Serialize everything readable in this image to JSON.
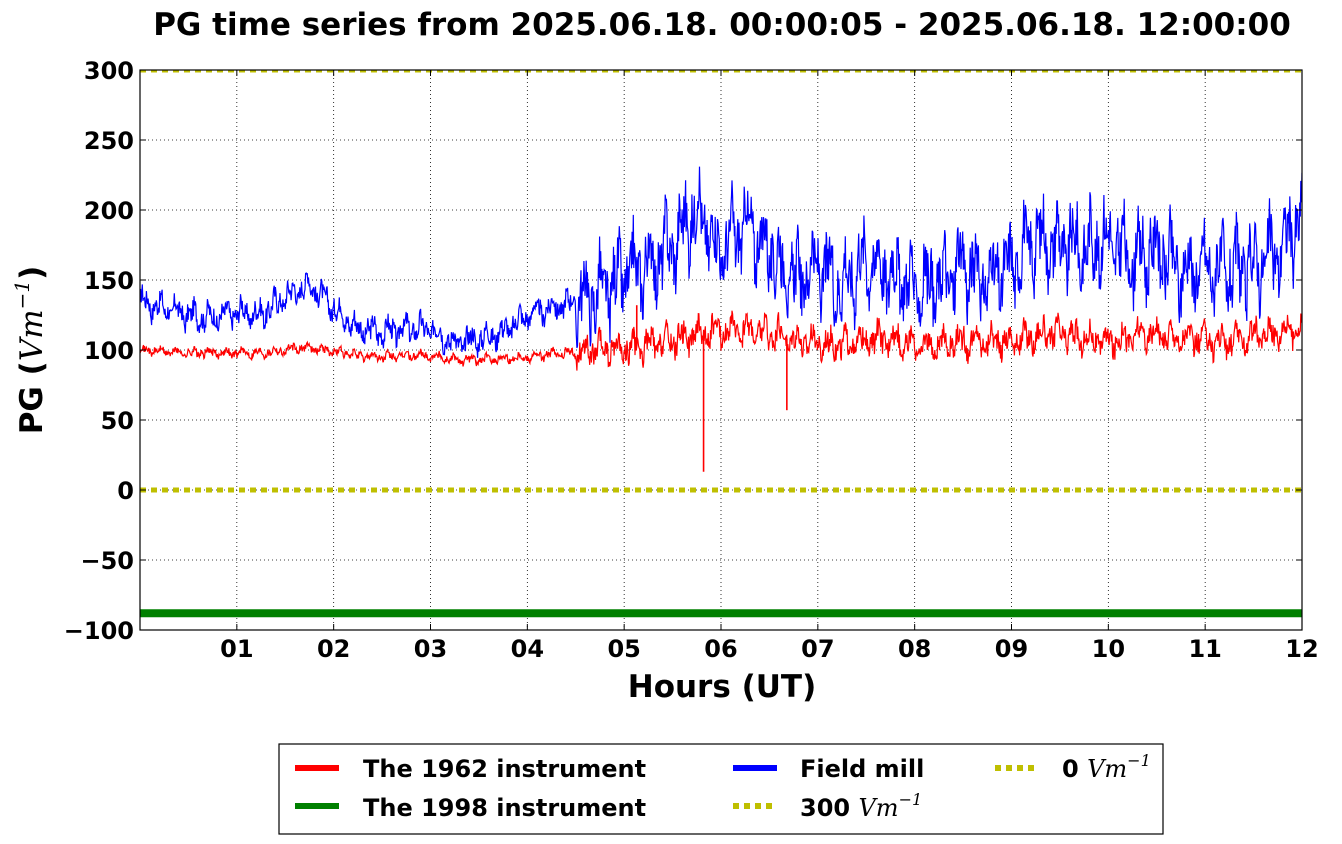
{
  "chart_data": {
    "type": "line",
    "title": "PG time series from 2025.06.18. 00:00:05 - 2025.06.18. 12:00:00",
    "xlabel": "Hours (UT)",
    "ylabel_main": "PG (",
    "ylabel_unit": "Vm",
    "ylabel_exp": "−1",
    "ylabel_close": ")",
    "xlim": [
      0,
      12
    ],
    "ylim": [
      -100,
      300
    ],
    "x_ticks": [
      1,
      2,
      3,
      4,
      5,
      6,
      7,
      8,
      9,
      10,
      11,
      12
    ],
    "x_tick_labels": [
      "01",
      "02",
      "03",
      "04",
      "05",
      "06",
      "07",
      "08",
      "09",
      "10",
      "11",
      "12"
    ],
    "y_ticks": [
      -100,
      -50,
      0,
      50,
      100,
      150,
      200,
      250,
      300
    ],
    "y_tick_labels": [
      "−100",
      "−50",
      "0",
      "50",
      "100",
      "150",
      "200",
      "250",
      "300"
    ],
    "grid": true,
    "legend_placement": "bottom-center",
    "series": [
      {
        "name": "The 1962 instrument",
        "color": "#ff0000",
        "style": "solid",
        "x": [
          0,
          0.25,
          0.5,
          0.75,
          1,
          1.25,
          1.5,
          1.75,
          2,
          2.25,
          2.5,
          2.75,
          3,
          3.25,
          3.5,
          3.75,
          4,
          4.25,
          4.5,
          4.75,
          5,
          5.25,
          5.5,
          5.75,
          6,
          6.25,
          6.5,
          6.75,
          7,
          7.25,
          7.5,
          7.75,
          8,
          8.25,
          8.5,
          8.75,
          9,
          9.25,
          9.5,
          9.75,
          10,
          10.25,
          10.5,
          10.75,
          11,
          11.25,
          11.5,
          11.75,
          12
        ],
        "y": [
          100,
          99,
          98,
          98,
          98,
          98,
          100,
          102,
          99,
          96,
          95,
          96,
          96,
          93,
          93,
          94,
          95,
          97,
          98,
          100,
          101,
          103,
          107,
          112,
          113,
          115,
          112,
          108,
          105,
          104,
          106,
          109,
          103,
          103,
          106,
          107,
          106,
          110,
          112,
          108,
          106,
          110,
          112,
          108,
          108,
          106,
          110,
          113,
          117
        ],
        "spikes": [
          {
            "x": 5.13,
            "y_from": 105,
            "y_to": 132
          },
          {
            "x": 5.82,
            "y_from": 110,
            "y_to": 13
          },
          {
            "x": 6.68,
            "y_from": 108,
            "y_to": 57
          }
        ]
      },
      {
        "name": "The 1998 instrument",
        "color": "#008000",
        "style": "solid-thick",
        "x": [
          0,
          12
        ],
        "y": [
          -88,
          -88
        ]
      },
      {
        "name": "Field mill",
        "color": "#0000ff",
        "style": "solid",
        "x": [
          0,
          0.25,
          0.5,
          0.75,
          1,
          1.25,
          1.5,
          1.75,
          2,
          2.25,
          2.5,
          2.75,
          3,
          3.25,
          3.5,
          3.75,
          4,
          4.25,
          4.5,
          4.75,
          5,
          5.25,
          5.5,
          5.75,
          6,
          6.25,
          6.5,
          6.75,
          7,
          7.25,
          7.5,
          7.75,
          8,
          8.25,
          8.5,
          8.75,
          9,
          9.25,
          9.5,
          9.75,
          10,
          10.25,
          10.5,
          10.75,
          11,
          11.25,
          11.5,
          11.75,
          12
        ],
        "y": [
          135,
          130,
          125,
          123,
          127,
          125,
          138,
          147,
          130,
          115,
          113,
          115,
          115,
          105,
          108,
          113,
          125,
          130,
          135,
          140,
          153,
          160,
          175,
          200,
          170,
          190,
          170,
          150,
          160,
          145,
          165,
          155,
          145,
          148,
          160,
          150,
          160,
          180,
          175,
          172,
          178,
          165,
          172,
          155,
          160,
          155,
          160,
          170,
          195
        ]
      },
      {
        "name": "300",
        "unit": "Vm",
        "unit_exp": "−1",
        "color": "#bfbf00",
        "style": "dotted",
        "x": [
          0,
          12
        ],
        "y": [
          300,
          300
        ]
      },
      {
        "name": "0",
        "unit": "Vm",
        "unit_exp": "−1",
        "color": "#bfbf00",
        "style": "dotted",
        "x": [
          0,
          12
        ],
        "y": [
          0,
          0
        ]
      }
    ]
  }
}
